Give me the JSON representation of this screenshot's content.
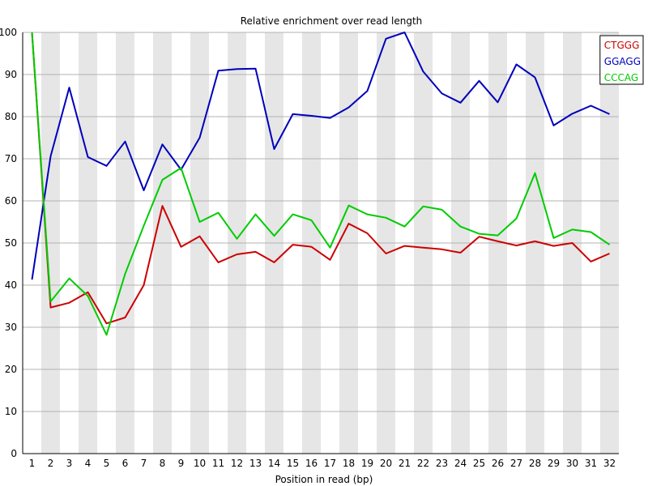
{
  "chart_data": {
    "type": "line",
    "title": "Relative enrichment over read length",
    "xlabel": "Position in read (bp)",
    "ylabel": "",
    "x": [
      1,
      2,
      3,
      4,
      5,
      6,
      7,
      8,
      9,
      10,
      11,
      12,
      13,
      14,
      15,
      16,
      17,
      18,
      19,
      20,
      21,
      22,
      23,
      24,
      25,
      26,
      27,
      28,
      29,
      30,
      31,
      32
    ],
    "x_tick_labels": [
      "1",
      "2",
      "3",
      "4",
      "5",
      "6",
      "7",
      "8",
      "9",
      "10",
      "11",
      "12",
      "13",
      "14",
      "15",
      "16",
      "17",
      "18",
      "19",
      "20",
      "21",
      "22",
      "23",
      "24",
      "25",
      "26",
      "27",
      "28",
      "29",
      "30",
      "31",
      "32"
    ],
    "ylim": [
      0,
      100
    ],
    "y_ticks": [
      0,
      10,
      20,
      30,
      40,
      50,
      60,
      70,
      80,
      90,
      100
    ],
    "y_tick_labels": [
      "0",
      "10",
      "20",
      "30",
      "40",
      "50",
      "60",
      "70",
      "80",
      "90",
      "100"
    ],
    "grid": true,
    "alternating_bands": true,
    "legend_position": "top-right",
    "series": [
      {
        "name": "CTGGG",
        "color": "#cc0000",
        "values": [
          100,
          34.7,
          35.8,
          38.3,
          30.9,
          32.3,
          40.0,
          58.8,
          49.1,
          51.6,
          45.4,
          47.3,
          47.9,
          45.4,
          49.6,
          49.1,
          46.0,
          54.6,
          52.3,
          47.5,
          49.3,
          48.9,
          48.5,
          47.7,
          51.5,
          50.4,
          49.4,
          50.4,
          49.3,
          50.0,
          45.6,
          47.5
        ]
      },
      {
        "name": "GGAGG",
        "color": "#0000bb",
        "values": [
          41.3,
          70.6,
          86.9,
          70.4,
          68.3,
          74.1,
          62.5,
          73.4,
          67.4,
          75.0,
          90.9,
          91.3,
          91.4,
          72.3,
          80.6,
          80.2,
          79.7,
          82.2,
          86.1,
          98.5,
          100.0,
          90.7,
          85.5,
          83.3,
          88.5,
          83.4,
          92.4,
          89.3,
          77.9,
          80.7,
          82.6,
          80.6
        ]
      },
      {
        "name": "CCCAG",
        "color": "#00cc00",
        "values": [
          100,
          36.1,
          41.6,
          37.4,
          28.2,
          42.7,
          54.1,
          65.0,
          67.8,
          55.0,
          57.2,
          51.0,
          56.8,
          51.7,
          56.8,
          55.4,
          48.9,
          58.9,
          56.8,
          56.0,
          53.9,
          58.7,
          57.9,
          53.9,
          52.2,
          51.8,
          55.8,
          66.6,
          51.2,
          53.2,
          52.6,
          49.6
        ]
      }
    ]
  }
}
